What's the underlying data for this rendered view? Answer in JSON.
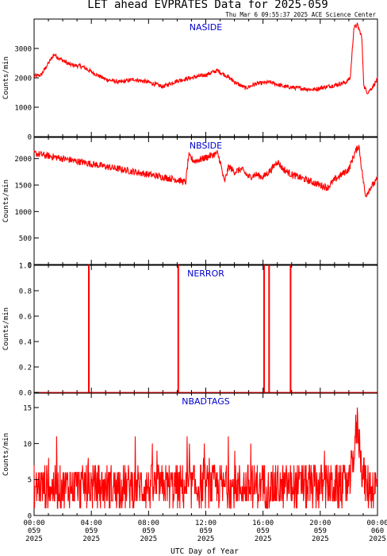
{
  "header": {
    "title": "LET ahead EVPRATES Data for 2025-059",
    "timestamp": "Thu Mar  6 09:55:37 2025 ACE Science Center"
  },
  "footer": {
    "xlabel": "UTC Day of Year"
  },
  "x_ticks": [
    {
      "time": "00:00",
      "doy": "059",
      "year": "2025"
    },
    {
      "time": "04:00",
      "doy": "059",
      "year": "2025"
    },
    {
      "time": "08:00",
      "doy": "059",
      "year": "2025"
    },
    {
      "time": "12:00",
      "doy": "059",
      "year": "2025"
    },
    {
      "time": "16:00",
      "doy": "059",
      "year": "2025"
    },
    {
      "time": "20:00",
      "doy": "059",
      "year": "2025"
    },
    {
      "time": "00:00",
      "doy": "060",
      "year": "2025"
    }
  ],
  "colors": {
    "series": "#ff0000",
    "label": "#0000cc",
    "axes": "#000000"
  },
  "chart_data": [
    {
      "type": "line",
      "title": "NASIDE",
      "ylabel": "Counts/min",
      "xlim": [
        0,
        24
      ],
      "ylim": [
        0,
        4000
      ],
      "yticks": [
        0,
        1000,
        2000,
        3000
      ],
      "keypoints": [
        [
          0,
          2050
        ],
        [
          0.5,
          2100
        ],
        [
          1.0,
          2500
        ],
        [
          1.4,
          2800
        ],
        [
          1.8,
          2650
        ],
        [
          2.5,
          2450
        ],
        [
          3.2,
          2400
        ],
        [
          3.5,
          2350
        ],
        [
          4.2,
          2150
        ],
        [
          5.0,
          1950
        ],
        [
          6.0,
          1850
        ],
        [
          7.0,
          1950
        ],
        [
          8.0,
          1850
        ],
        [
          9.0,
          1700
        ],
        [
          10.0,
          1900
        ],
        [
          11.0,
          2000
        ],
        [
          12.0,
          2100
        ],
        [
          12.8,
          2250
        ],
        [
          13.5,
          2050
        ],
        [
          14.2,
          1800
        ],
        [
          14.8,
          1650
        ],
        [
          15.5,
          1800
        ],
        [
          16.5,
          1850
        ],
        [
          17.5,
          1700
        ],
        [
          18.5,
          1650
        ],
        [
          19.5,
          1600
        ],
        [
          20.0,
          1650
        ],
        [
          21.0,
          1750
        ],
        [
          21.8,
          1850
        ],
        [
          22.1,
          2000
        ],
        [
          22.35,
          3700
        ],
        [
          22.6,
          3800
        ],
        [
          22.9,
          3400
        ],
        [
          23.05,
          1700
        ],
        [
          23.3,
          1500
        ],
        [
          23.6,
          1650
        ],
        [
          24.0,
          1950
        ]
      ],
      "noise": 70
    },
    {
      "type": "line",
      "title": "NBSIDE",
      "ylabel": "Counts/min",
      "xlim": [
        0,
        24
      ],
      "ylim": [
        0,
        2400
      ],
      "yticks": [
        0,
        500,
        1000,
        1500,
        2000
      ],
      "keypoints": [
        [
          0,
          2100
        ],
        [
          1,
          2050
        ],
        [
          2,
          2000
        ],
        [
          3,
          1950
        ],
        [
          4,
          1900
        ],
        [
          5,
          1850
        ],
        [
          6,
          1800
        ],
        [
          7,
          1750
        ],
        [
          8,
          1700
        ],
        [
          9,
          1650
        ],
        [
          10,
          1600
        ],
        [
          10.6,
          1550
        ],
        [
          10.8,
          2050
        ],
        [
          11.2,
          1950
        ],
        [
          11.8,
          2000
        ],
        [
          12.3,
          2050
        ],
        [
          12.8,
          2100
        ],
        [
          13.0,
          1950
        ],
        [
          13.3,
          1550
        ],
        [
          13.6,
          1850
        ],
        [
          14.0,
          1750
        ],
        [
          14.5,
          1800
        ],
        [
          15.0,
          1650
        ],
        [
          15.5,
          1700
        ],
        [
          16.0,
          1650
        ],
        [
          16.6,
          1800
        ],
        [
          17.0,
          1950
        ],
        [
          17.4,
          1800
        ],
        [
          18.0,
          1700
        ],
        [
          19.0,
          1600
        ],
        [
          19.5,
          1550
        ],
        [
          20.0,
          1500
        ],
        [
          20.5,
          1450
        ],
        [
          21.0,
          1600
        ],
        [
          21.5,
          1700
        ],
        [
          22.0,
          1800
        ],
        [
          22.4,
          2100
        ],
        [
          22.7,
          2250
        ],
        [
          22.9,
          1800
        ],
        [
          23.15,
          1300
        ],
        [
          23.5,
          1450
        ],
        [
          24.0,
          1600
        ]
      ],
      "noise": 65
    },
    {
      "type": "line",
      "title": "NERROR",
      "ylabel": "Counts/min",
      "xlim": [
        0,
        24
      ],
      "ylim": [
        0,
        1
      ],
      "yticks": [
        0.0,
        0.2,
        0.4,
        0.6,
        0.8,
        1.0
      ],
      "spikes": [
        3.8,
        10.05,
        16.05,
        16.4,
        17.9
      ],
      "noise": 0
    },
    {
      "type": "line",
      "title": "NBADTAGS",
      "ylabel": "Counts/min",
      "xlim": [
        0,
        24
      ],
      "ylim": [
        0,
        17
      ],
      "yticks": [
        0,
        5,
        10,
        15
      ],
      "keypoints": [
        [
          0,
          4
        ],
        [
          22.0,
          4
        ],
        [
          22.3,
          8
        ],
        [
          22.6,
          13
        ],
        [
          22.9,
          7
        ],
        [
          23.2,
          4
        ],
        [
          24,
          4
        ]
      ],
      "noise": 3
    }
  ]
}
